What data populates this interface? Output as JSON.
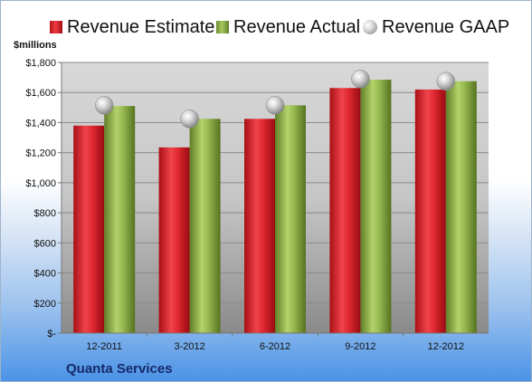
{
  "legend": {
    "estimate": "Revenue Estimate",
    "actual": "Revenue Actual",
    "gaap": "Revenue GAAP"
  },
  "unit_label": "$millions",
  "company": "Quanta Services",
  "colors": {
    "estimate": "#d9232b",
    "actual": "#8fb24a",
    "gaap": "#b8b8b8",
    "plot_background": "#d4d4d4"
  },
  "chart_data": {
    "type": "bar",
    "title": "",
    "xlabel": "",
    "ylabel": "$millions",
    "ylim": [
      0,
      1800
    ],
    "ytick_labels": [
      "$-",
      "$200",
      "$400",
      "$600",
      "$800",
      "$1,000",
      "$1,200",
      "$1,400",
      "$1,600",
      "$1,800"
    ],
    "grid": true,
    "legend_position": "top",
    "categories": [
      "12-2011",
      "3-2012",
      "6-2012",
      "9-2012",
      "12-2012"
    ],
    "series": [
      {
        "name": "Revenue Estimate",
        "kind": "bar",
        "values": [
          1380,
          1235,
          1425,
          1630,
          1620
        ]
      },
      {
        "name": "Revenue Actual",
        "kind": "bar",
        "values": [
          1510,
          1425,
          1515,
          1685,
          1675
        ]
      },
      {
        "name": "Revenue GAAP",
        "kind": "marker",
        "values": [
          1515,
          1425,
          1515,
          1690,
          1675
        ]
      }
    ]
  }
}
